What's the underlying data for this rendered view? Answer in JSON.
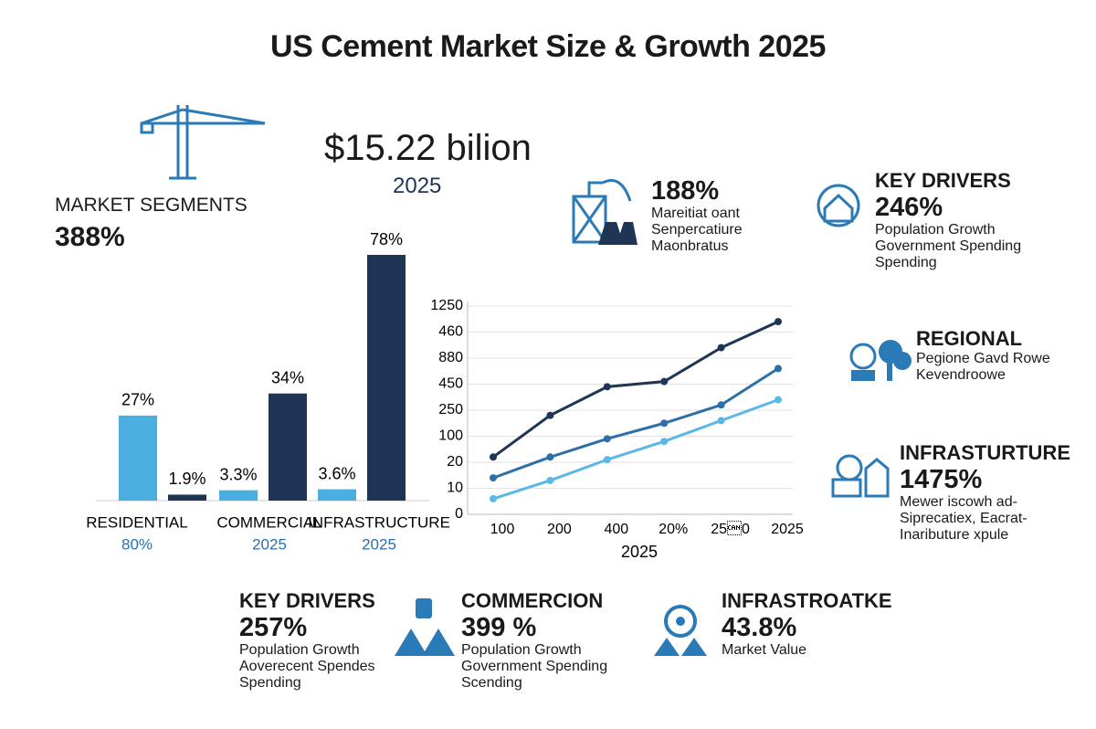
{
  "title": "US Cement Market Size & Growth 2025",
  "headline": {
    "value": "$15.22 bilion",
    "year": "2025"
  },
  "segments": {
    "label": "MARKET SEGMENTS",
    "value": "388%"
  },
  "chart_data": [
    {
      "type": "bar",
      "categories": [
        "RESIDENTIAL",
        "COMMERCIAL",
        "INFRASTRUCTURE"
      ],
      "category_sublabels": [
        "80%",
        "2025",
        "2025"
      ],
      "series": [
        {
          "color": "#4aaee0",
          "values": [
            27,
            3.3,
            3.6
          ],
          "value_labels": [
            "27%",
            "3.3%",
            "3.6%"
          ]
        },
        {
          "color": "#1e3556",
          "values": [
            1.9,
            34,
            78
          ],
          "value_labels": [
            "1.9%",
            "34%",
            "78%"
          ]
        }
      ]
    },
    {
      "type": "line",
      "categories": [
        "100",
        "200",
        "400",
        "20%",
        "25\u00180",
        "2025"
      ],
      "x_label": "2025",
      "y_labels": [
        "0",
        "10",
        "20",
        "100",
        "250",
        "450",
        "880",
        "460",
        "1250"
      ],
      "ylim": [
        0,
        8
      ],
      "grid": true,
      "series": [
        {
          "color": "#1e3556",
          "values": [
            2.2,
            3.8,
            4.9,
            5.1,
            6.4,
            7.4
          ]
        },
        {
          "color": "#2f6fa8",
          "values": [
            1.4,
            2.2,
            2.9,
            3.5,
            4.2,
            5.6
          ]
        },
        {
          "color": "#5ab8e6",
          "values": [
            0.6,
            1.3,
            2.1,
            2.8,
            3.6,
            4.4
          ]
        }
      ]
    }
  ],
  "cards": [
    {
      "value": "188%",
      "lines": [
        "Mareitiat oant",
        "Senpercatiure",
        "Maonbratus"
      ]
    },
    {
      "title": "KEY DRIVERS",
      "value": "246%",
      "lines": [
        "Population Growth",
        "Government Spending",
        "Spending"
      ]
    },
    {
      "title": "REGIONAL",
      "lines": [
        "Pegione Gavd Rowe",
        "Kevendroowe"
      ]
    },
    {
      "title": "INFRASTURTURE",
      "value": "1475%",
      "lines": [
        "Mewer iscowh ad-",
        "Siprecatiex, Eacrat-",
        "Inaributure xpule"
      ]
    },
    {
      "title": "KEY DRIVERS",
      "value": "257%",
      "lines": [
        "Population Growth",
        "Aoverecent Spendes",
        "Spending"
      ]
    },
    {
      "title": "COMMERCION",
      "value": "399 %",
      "lines": [
        "Population Growth",
        "Government Spending",
        "Scending"
      ]
    },
    {
      "title": "INFRASTROATKE",
      "value": "43.8%",
      "lines": [
        "Market Value"
      ]
    }
  ]
}
